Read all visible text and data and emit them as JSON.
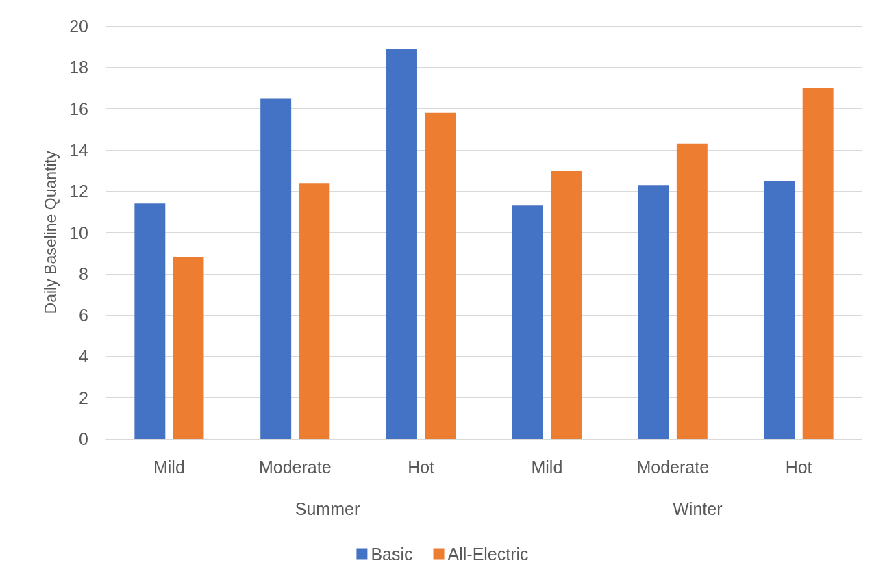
{
  "chart_data": {
    "type": "bar",
    "ylabel": "Daily Baseline Quantity",
    "categories": [
      "Mild",
      "Moderate",
      "Hot",
      "Mild",
      "Moderate",
      "Hot"
    ],
    "series": [
      {
        "name": "Basic",
        "color": "#4472c4",
        "values": [
          11.4,
          16.5,
          18.9,
          11.3,
          12.3,
          12.5
        ]
      },
      {
        "name": "All-Electric",
        "color": "#ed7d31",
        "values": [
          8.8,
          12.4,
          15.8,
          13.0,
          14.3,
          17.0
        ]
      }
    ],
    "annotations": [
      "Summer",
      "Winter"
    ],
    "ylim": [
      0,
      20
    ],
    "yticks": [
      0,
      2,
      4,
      6,
      8,
      10,
      12,
      14,
      16,
      18,
      20
    ],
    "grid": "y",
    "legend": "bottom"
  }
}
